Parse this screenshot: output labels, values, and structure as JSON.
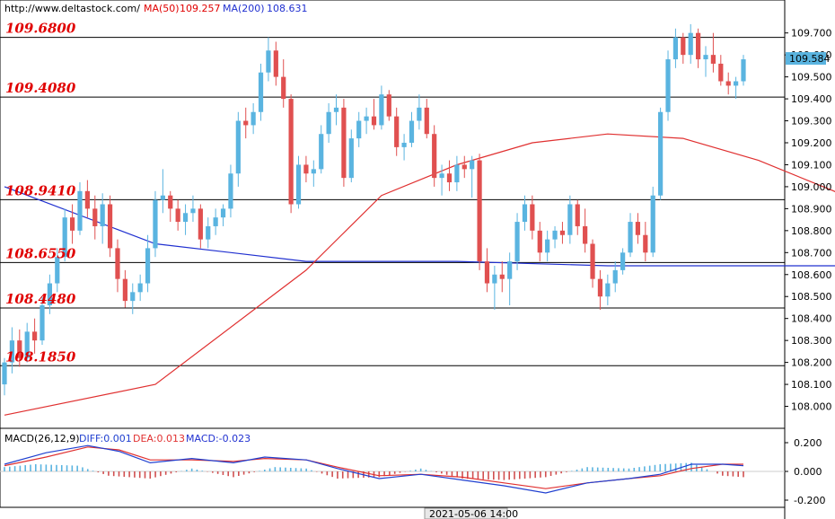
{
  "header": {
    "source": "http://www.deltastock.com/",
    "ma50_label": "MA(50)",
    "ma50_value": "109.257",
    "ma200_label": "MA(200)",
    "ma200_value": "108.631"
  },
  "colors": {
    "bull": "#5ab4e0",
    "bear": "#e05050",
    "ma50": "#e03030",
    "ma200": "#2030d0",
    "level_text": "#e00000",
    "current_bg": "#5ab4e0",
    "macd_diff": "#2040d0",
    "macd_dea": "#e03030",
    "hist_pos": "#5ab4e0",
    "hist_neg": "#d05050"
  },
  "chart_data": [
    {
      "type": "candlestick",
      "y_axis": {
        "range": [
          107.9,
          109.85
        ],
        "ticks": [
          "108.000",
          "108.100",
          "108.200",
          "108.300",
          "108.400",
          "108.500",
          "108.600",
          "108.700",
          "108.800",
          "108.900",
          "109.000",
          "109.100",
          "109.200",
          "109.300",
          "109.400",
          "109.500",
          "109.600",
          "109.700"
        ]
      },
      "current_price": "109.584",
      "levels": [
        "109.6800",
        "109.4080",
        "108.9410",
        "108.6550",
        "108.4480",
        "108.1850"
      ],
      "x_label": "2021-05-06 14:00",
      "ohlc": [
        [
          108.1,
          108.22,
          108.05,
          108.2
        ],
        [
          108.2,
          108.36,
          108.15,
          108.3
        ],
        [
          108.3,
          108.35,
          108.18,
          108.22
        ],
        [
          108.22,
          108.38,
          108.2,
          108.34
        ],
        [
          108.34,
          108.4,
          108.24,
          108.3
        ],
        [
          108.3,
          108.5,
          108.28,
          108.46
        ],
        [
          108.46,
          108.6,
          108.42,
          108.56
        ],
        [
          108.56,
          108.72,
          108.52,
          108.68
        ],
        [
          108.68,
          108.9,
          108.66,
          108.86
        ],
        [
          108.86,
          108.92,
          108.74,
          108.8
        ],
        [
          108.8,
          109.02,
          108.78,
          108.98
        ],
        [
          108.98,
          109.03,
          108.86,
          108.9
        ],
        [
          108.9,
          108.96,
          108.76,
          108.82
        ],
        [
          108.82,
          108.97,
          108.74,
          108.92
        ],
        [
          108.92,
          108.96,
          108.68,
          108.72
        ],
        [
          108.72,
          108.76,
          108.52,
          108.58
        ],
        [
          108.58,
          108.62,
          108.45,
          108.48
        ],
        [
          108.48,
          108.56,
          108.42,
          108.52
        ],
        [
          108.52,
          108.6,
          108.48,
          108.56
        ],
        [
          108.56,
          108.78,
          108.52,
          108.72
        ],
        [
          108.72,
          108.98,
          108.68,
          108.94
        ],
        [
          108.94,
          109.08,
          108.88,
          108.96
        ],
        [
          108.96,
          108.98,
          108.84,
          108.9
        ],
        [
          108.9,
          108.94,
          108.8,
          108.84
        ],
        [
          108.84,
          108.92,
          108.78,
          108.88
        ],
        [
          108.88,
          108.96,
          108.84,
          108.9
        ],
        [
          108.9,
          108.92,
          108.72,
          108.76
        ],
        [
          108.76,
          108.86,
          108.72,
          108.82
        ],
        [
          108.82,
          108.9,
          108.78,
          108.86
        ],
        [
          108.86,
          108.92,
          108.82,
          108.9
        ],
        [
          108.9,
          109.1,
          108.86,
          109.06
        ],
        [
          109.06,
          109.34,
          109.0,
          109.3
        ],
        [
          109.3,
          109.36,
          109.22,
          109.28
        ],
        [
          109.28,
          109.38,
          109.24,
          109.34
        ],
        [
          109.34,
          109.56,
          109.3,
          109.52
        ],
        [
          109.52,
          109.68,
          109.48,
          109.62
        ],
        [
          109.62,
          109.66,
          109.46,
          109.5
        ],
        [
          109.5,
          109.58,
          109.36,
          109.4
        ],
        [
          109.4,
          109.42,
          108.88,
          108.92
        ],
        [
          108.92,
          109.14,
          108.9,
          109.1
        ],
        [
          109.1,
          109.14,
          109.02,
          109.06
        ],
        [
          109.06,
          109.12,
          109.0,
          109.08
        ],
        [
          109.08,
          109.28,
          109.06,
          109.24
        ],
        [
          109.24,
          109.38,
          109.2,
          109.34
        ],
        [
          109.34,
          109.42,
          109.28,
          109.36
        ],
        [
          109.36,
          109.4,
          109.0,
          109.04
        ],
        [
          109.04,
          109.26,
          109.02,
          109.22
        ],
        [
          109.22,
          109.34,
          109.18,
          109.3
        ],
        [
          109.3,
          109.36,
          109.24,
          109.32
        ],
        [
          109.32,
          109.4,
          109.26,
          109.28
        ],
        [
          109.28,
          109.46,
          109.26,
          109.42
        ],
        [
          109.42,
          109.44,
          109.3,
          109.32
        ],
        [
          109.32,
          109.36,
          109.14,
          109.18
        ],
        [
          109.18,
          109.24,
          109.12,
          109.2
        ],
        [
          109.2,
          109.34,
          109.18,
          109.3
        ],
        [
          109.3,
          109.42,
          109.26,
          109.36
        ],
        [
          109.36,
          109.4,
          109.22,
          109.24
        ],
        [
          109.24,
          109.28,
          109.0,
          109.04
        ],
        [
          109.04,
          109.1,
          108.96,
          109.06
        ],
        [
          109.06,
          109.12,
          108.98,
          109.02
        ],
        [
          109.02,
          109.14,
          108.98,
          109.1
        ],
        [
          109.1,
          109.14,
          109.04,
          109.08
        ],
        [
          109.08,
          109.14,
          108.95,
          109.12
        ],
        [
          109.12,
          109.15,
          108.62,
          108.66
        ],
        [
          108.66,
          108.72,
          108.52,
          108.56
        ],
        [
          108.56,
          108.64,
          108.44,
          108.6
        ],
        [
          108.6,
          108.66,
          108.52,
          108.58
        ],
        [
          108.58,
          108.7,
          108.46,
          108.66
        ],
        [
          108.66,
          108.88,
          108.62,
          108.84
        ],
        [
          108.84,
          108.96,
          108.8,
          108.92
        ],
        [
          108.92,
          108.96,
          108.76,
          108.8
        ],
        [
          108.8,
          108.84,
          108.66,
          108.7
        ],
        [
          108.7,
          108.8,
          108.66,
          108.76
        ],
        [
          108.76,
          108.82,
          108.72,
          108.8
        ],
        [
          108.8,
          108.84,
          108.74,
          108.78
        ],
        [
          108.78,
          108.96,
          108.74,
          108.92
        ],
        [
          108.92,
          108.94,
          108.78,
          108.82
        ],
        [
          108.82,
          108.9,
          108.7,
          108.74
        ],
        [
          108.74,
          108.76,
          108.54,
          108.58
        ],
        [
          108.58,
          108.62,
          108.44,
          108.5
        ],
        [
          108.5,
          108.6,
          108.46,
          108.56
        ],
        [
          108.56,
          108.66,
          108.52,
          108.62
        ],
        [
          108.62,
          108.72,
          108.6,
          108.7
        ],
        [
          108.7,
          108.88,
          108.68,
          108.84
        ],
        [
          108.84,
          108.88,
          108.74,
          108.78
        ],
        [
          108.78,
          108.84,
          108.66,
          108.7
        ],
        [
          108.7,
          109.0,
          108.68,
          108.96
        ],
        [
          108.96,
          109.36,
          108.94,
          109.34
        ],
        [
          109.34,
          109.62,
          109.3,
          109.58
        ],
        [
          109.58,
          109.72,
          109.54,
          109.68
        ],
        [
          109.68,
          109.7,
          109.56,
          109.6
        ],
        [
          109.6,
          109.74,
          109.56,
          109.7
        ],
        [
          109.7,
          109.72,
          109.54,
          109.58
        ],
        [
          109.58,
          109.64,
          109.5,
          109.6
        ],
        [
          109.6,
          109.7,
          109.52,
          109.56
        ],
        [
          109.56,
          109.6,
          109.46,
          109.48
        ],
        [
          109.48,
          109.52,
          109.42,
          109.46
        ],
        [
          109.46,
          109.5,
          109.4,
          109.48
        ],
        [
          109.48,
          109.6,
          109.46,
          109.58
        ]
      ],
      "ma50": [
        [
          0,
          107.96
        ],
        [
          20,
          108.1
        ],
        [
          40,
          108.62
        ],
        [
          50,
          108.96
        ],
        [
          60,
          109.1
        ],
        [
          70,
          109.2
        ],
        [
          80,
          109.24
        ],
        [
          90,
          109.22
        ],
        [
          100,
          109.12
        ],
        [
          110,
          108.98
        ],
        [
          118,
          108.84
        ],
        [
          124,
          108.92
        ],
        [
          130,
          109.02
        ],
        [
          136,
          109.12
        ]
      ],
      "ma200": [
        [
          0,
          109.0
        ],
        [
          20,
          108.74
        ],
        [
          40,
          108.66
        ],
        [
          60,
          108.66
        ],
        [
          80,
          108.64
        ],
        [
          100,
          108.64
        ],
        [
          110,
          108.64
        ],
        [
          118,
          108.64
        ],
        [
          124,
          108.7
        ],
        [
          130,
          108.76
        ],
        [
          136,
          108.83
        ]
      ]
    },
    {
      "type": "macd",
      "title": "MACD(26,12,9)",
      "labels": {
        "diff": "DIFF:0.001",
        "dea": "DEA:0.013",
        "macd": "MACD:-0.023"
      },
      "y_axis": {
        "range": [
          -0.25,
          0.3
        ],
        "ticks": [
          "0.200",
          "0.000",
          "-0.200"
        ]
      },
      "diff": [
        [
          0,
          0.05
        ],
        [
          8,
          0.13
        ],
        [
          16,
          0.18
        ],
        [
          22,
          0.14
        ],
        [
          28,
          0.06
        ],
        [
          36,
          0.09
        ],
        [
          44,
          0.06
        ],
        [
          50,
          0.1
        ],
        [
          58,
          0.08
        ],
        [
          64,
          0.02
        ],
        [
          72,
          -0.05
        ],
        [
          80,
          -0.02
        ],
        [
          88,
          -0.06
        ],
        [
          96,
          -0.1
        ],
        [
          104,
          -0.15
        ],
        [
          112,
          -0.08
        ],
        [
          120,
          -0.05
        ],
        [
          126,
          -0.02
        ],
        [
          132,
          0.05
        ],
        [
          138,
          0.05
        ],
        [
          142,
          0.04
        ]
      ],
      "dea": [
        [
          0,
          0.04
        ],
        [
          8,
          0.1
        ],
        [
          16,
          0.17
        ],
        [
          22,
          0.15
        ],
        [
          28,
          0.08
        ],
        [
          36,
          0.08
        ],
        [
          44,
          0.07
        ],
        [
          50,
          0.09
        ],
        [
          58,
          0.08
        ],
        [
          64,
          0.03
        ],
        [
          72,
          -0.03
        ],
        [
          80,
          -0.02
        ],
        [
          88,
          -0.04
        ],
        [
          96,
          -0.08
        ],
        [
          104,
          -0.12
        ],
        [
          112,
          -0.08
        ],
        [
          120,
          -0.05
        ],
        [
          126,
          -0.03
        ],
        [
          132,
          0.02
        ],
        [
          138,
          0.05
        ],
        [
          142,
          0.05
        ]
      ],
      "histogram_shape": [
        [
          0,
          0.03
        ],
        [
          6,
          0.05
        ],
        [
          14,
          0.04
        ],
        [
          20,
          -0.03
        ],
        [
          28,
          -0.05
        ],
        [
          36,
          0.02
        ],
        [
          44,
          -0.04
        ],
        [
          52,
          0.03
        ],
        [
          58,
          0.02
        ],
        [
          64,
          -0.05
        ],
        [
          72,
          -0.04
        ],
        [
          80,
          0.02
        ],
        [
          88,
          -0.05
        ],
        [
          96,
          -0.06
        ],
        [
          104,
          -0.04
        ],
        [
          112,
          0.03
        ],
        [
          120,
          0.02
        ],
        [
          126,
          0.05
        ],
        [
          132,
          0.06
        ],
        [
          138,
          -0.03
        ],
        [
          142,
          -0.04
        ]
      ]
    }
  ]
}
